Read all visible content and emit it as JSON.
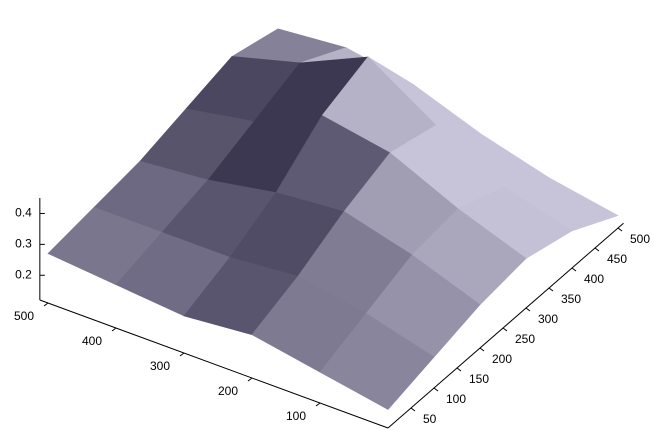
{
  "chart_data": {
    "type": "surface",
    "x": [
      0,
      100,
      200,
      300,
      400,
      500
    ],
    "y": [
      0,
      100,
      200,
      300,
      400,
      500
    ],
    "z": [
      [
        0.18,
        0.22,
        0.26,
        0.28,
        0.24,
        0.16
      ],
      [
        0.22,
        0.28,
        0.34,
        0.36,
        0.3,
        0.2
      ],
      [
        0.26,
        0.32,
        0.4,
        0.46,
        0.42,
        0.26
      ],
      [
        0.24,
        0.3,
        0.38,
        0.5,
        0.56,
        0.34
      ],
      [
        0.26,
        0.3,
        0.34,
        0.4,
        0.46,
        0.38
      ],
      [
        0.28,
        0.3,
        0.32,
        0.36,
        0.4,
        0.36
      ]
    ],
    "xlim": [
      0,
      512
    ],
    "ylim": [
      0,
      512
    ],
    "zlim": [
      0.12,
      0.45
    ],
    "xticks": [
      100,
      200,
      300,
      400,
      500
    ],
    "yticks": [
      50,
      100,
      150,
      200,
      250,
      300,
      350,
      400,
      450,
      500
    ],
    "zticks": [
      0.2,
      0.3,
      0.4
    ],
    "colormap": [
      "#34304a",
      "#cfcbe0"
    ]
  }
}
